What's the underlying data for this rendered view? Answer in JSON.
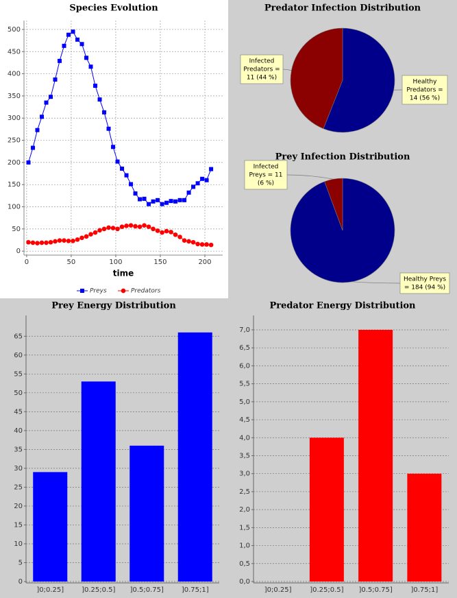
{
  "chart_data": [
    {
      "type": "line",
      "title": "Species Evolution",
      "x_label": "time",
      "x": [
        2,
        7,
        12,
        17,
        22,
        27,
        32,
        37,
        42,
        47,
        52,
        57,
        62,
        67,
        72,
        77,
        82,
        87,
        92,
        97,
        102,
        107,
        112,
        117,
        122,
        127,
        132,
        137,
        142,
        147,
        152,
        157,
        162,
        167,
        172,
        177,
        182,
        187,
        192,
        197,
        202,
        207
      ],
      "series": [
        {
          "name": "Preys",
          "color": "#0000ff",
          "marker": "square",
          "values": [
            200,
            233,
            273,
            303,
            335,
            348,
            387,
            429,
            463,
            488,
            495,
            477,
            467,
            436,
            416,
            373,
            342,
            313,
            276,
            235,
            202,
            186,
            171,
            151,
            130,
            117,
            118,
            106,
            112,
            115,
            106,
            109,
            113,
            112,
            115,
            115,
            132,
            145,
            153,
            163,
            160,
            185
          ]
        },
        {
          "name": "Predators",
          "color": "#ff0000",
          "marker": "circle",
          "values": [
            20,
            19,
            18,
            19,
            19,
            20,
            22,
            24,
            24,
            23,
            23,
            26,
            30,
            33,
            38,
            42,
            47,
            50,
            53,
            52,
            50,
            55,
            57,
            58,
            56,
            55,
            58,
            55,
            50,
            46,
            42,
            45,
            43,
            37,
            32,
            24,
            22,
            20,
            16,
            15,
            15,
            14
          ]
        }
      ],
      "xlim": [
        -3,
        220
      ],
      "ylim": [
        -9,
        520
      ],
      "xticks": [
        0,
        50,
        100,
        150,
        200
      ],
      "yticks": [
        0,
        50,
        100,
        150,
        200,
        250,
        300,
        350,
        400,
        450,
        500
      ],
      "grid": true,
      "legend": "bottom"
    },
    {
      "type": "pie",
      "title": "Predator Infection Distribution",
      "categories": [
        "Healthy Predators",
        "Infected Predators"
      ],
      "values": [
        14,
        11
      ],
      "labels": [
        [
          "Healthy",
          "Predators =",
          "14 (56 %)"
        ],
        [
          "Infected",
          "Predators =",
          "11 (44 %)"
        ]
      ],
      "colors": [
        "#00008b",
        "#8b0000"
      ]
    },
    {
      "type": "pie",
      "title": "Prey Infection Distribution",
      "categories": [
        "Healthy Preys",
        "Infected Preys"
      ],
      "values": [
        184,
        11
      ],
      "labels": [
        [
          "Healthy Preys",
          "= 184 (94 %)"
        ],
        [
          "Infected",
          "Preys = 11",
          "(6 %)"
        ]
      ],
      "colors": [
        "#00008b",
        "#8b0000"
      ]
    },
    {
      "type": "bar",
      "title": "Prey Energy Distribution",
      "categories": [
        "]0;0.25]",
        "]0.25;0.5]",
        "]0.5;0.75]",
        "]0.75;1]"
      ],
      "values": [
        29,
        53,
        36,
        66
      ],
      "color": "#0000ff",
      "ylim": [
        0,
        70.5
      ],
      "yticks": [
        0,
        5,
        10,
        15,
        20,
        25,
        30,
        35,
        40,
        45,
        50,
        55,
        60,
        65
      ],
      "grid": true
    },
    {
      "type": "bar",
      "title": "Predator Energy Distribution",
      "categories": [
        "]0;0.25]",
        "]0.25;0.5]",
        "]0.5;0.75]",
        "]0.75;1]"
      ],
      "values": [
        0,
        4,
        7,
        3
      ],
      "color": "#ff0000",
      "ylim": [
        0,
        7.4
      ],
      "yticks": [
        {
          "value": 0,
          "label": "0,0"
        },
        {
          "value": 0.5,
          "label": "0,5"
        },
        {
          "value": 1,
          "label": "1,0"
        },
        {
          "value": 1.5,
          "label": "1,5"
        },
        {
          "value": 2,
          "label": "2,0"
        },
        {
          "value": 2.5,
          "label": "2,5"
        },
        {
          "value": 3,
          "label": "3,0"
        },
        {
          "value": 3.5,
          "label": "3,5"
        },
        {
          "value": 4,
          "label": "4,0"
        },
        {
          "value": 4.5,
          "label": "4,5"
        },
        {
          "value": 5,
          "label": "5,0"
        },
        {
          "value": 5.5,
          "label": "5,5"
        },
        {
          "value": 6,
          "label": "6,0"
        },
        {
          "value": 6.5,
          "label": "6,5"
        },
        {
          "value": 7,
          "label": "7,0"
        }
      ],
      "grid": true
    }
  ]
}
